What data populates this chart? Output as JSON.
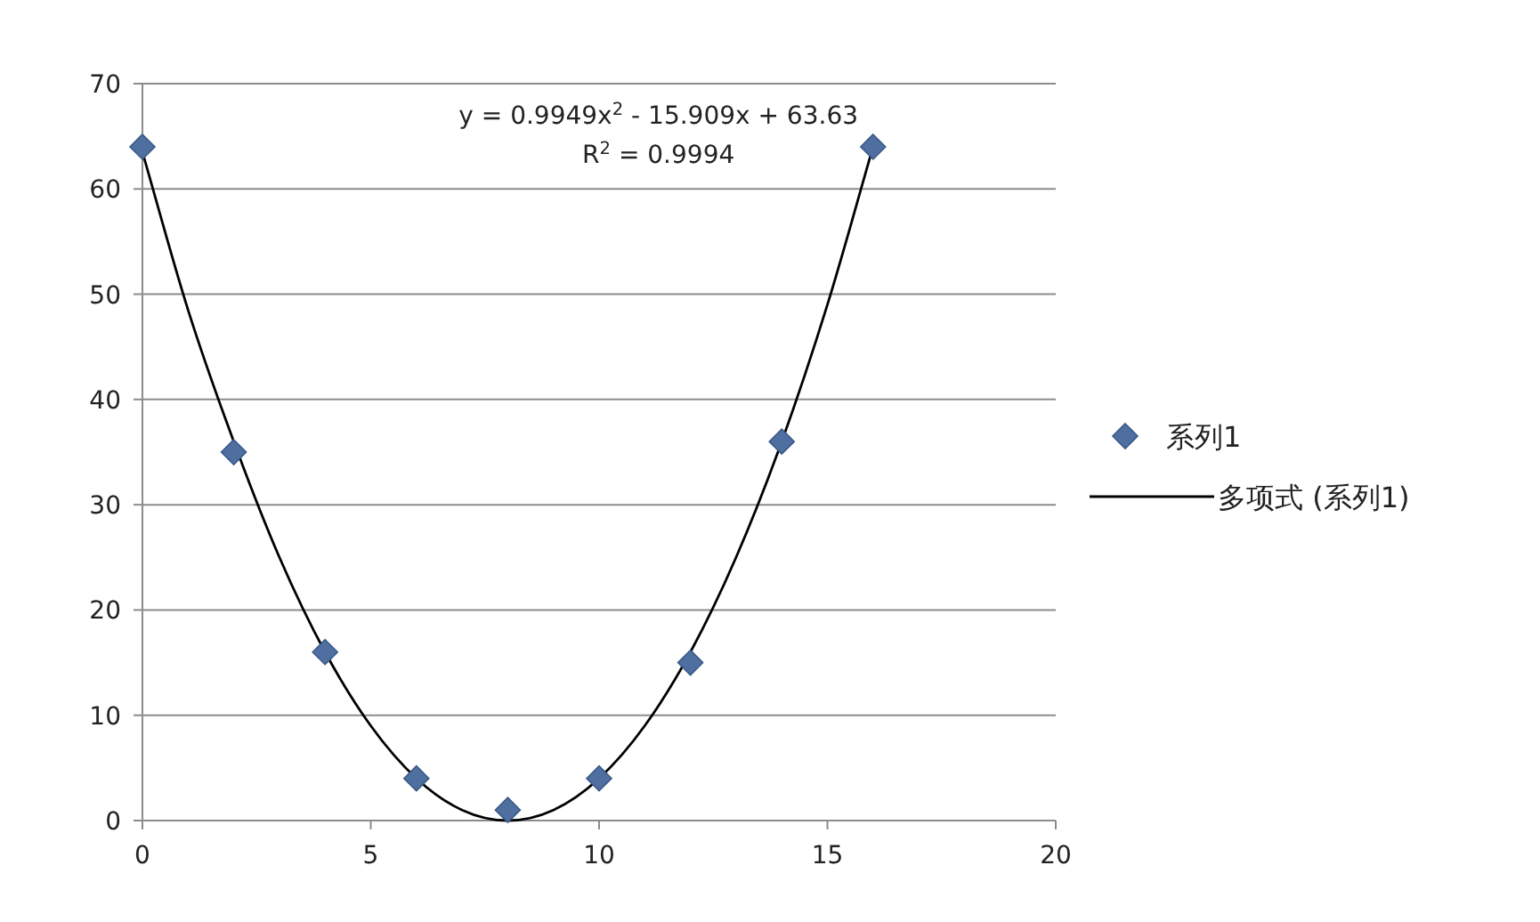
{
  "chart_data": {
    "type": "scatter",
    "xlim": [
      0,
      20
    ],
    "xticks": [
      0,
      5,
      10,
      15,
      20
    ],
    "ylim": [
      0,
      70
    ],
    "yticks": [
      0,
      10,
      20,
      30,
      40,
      50,
      60,
      70
    ],
    "grid": "y",
    "legend": "right",
    "annotations": [
      "y = 0.9949x$^{2}$ - 15.909x + 63.63",
      "R$^{2}$ = 0.9994"
    ],
    "series": [
      {
        "name": "系列1",
        "marker": "diamond",
        "color": "#4f6fa0",
        "x": [
          0,
          2,
          4,
          6,
          8,
          10,
          12,
          14,
          16
        ],
        "values": [
          64,
          35,
          16,
          4,
          1,
          4,
          15,
          36,
          64
        ]
      },
      {
        "name": "多项式 (系列1)",
        "type": "line",
        "marker": "none",
        "line_style": "solid",
        "color": "#000000",
        "x": [
          0,
          1,
          2,
          3,
          4,
          5,
          6,
          7,
          8,
          9,
          10,
          11,
          12,
          13,
          14,
          15,
          16
        ],
        "values": [
          63.5,
          48.5,
          36,
          25,
          16,
          9,
          4,
          1,
          0,
          1,
          4,
          9,
          16,
          25,
          36,
          49,
          64
        ]
      }
    ]
  }
}
